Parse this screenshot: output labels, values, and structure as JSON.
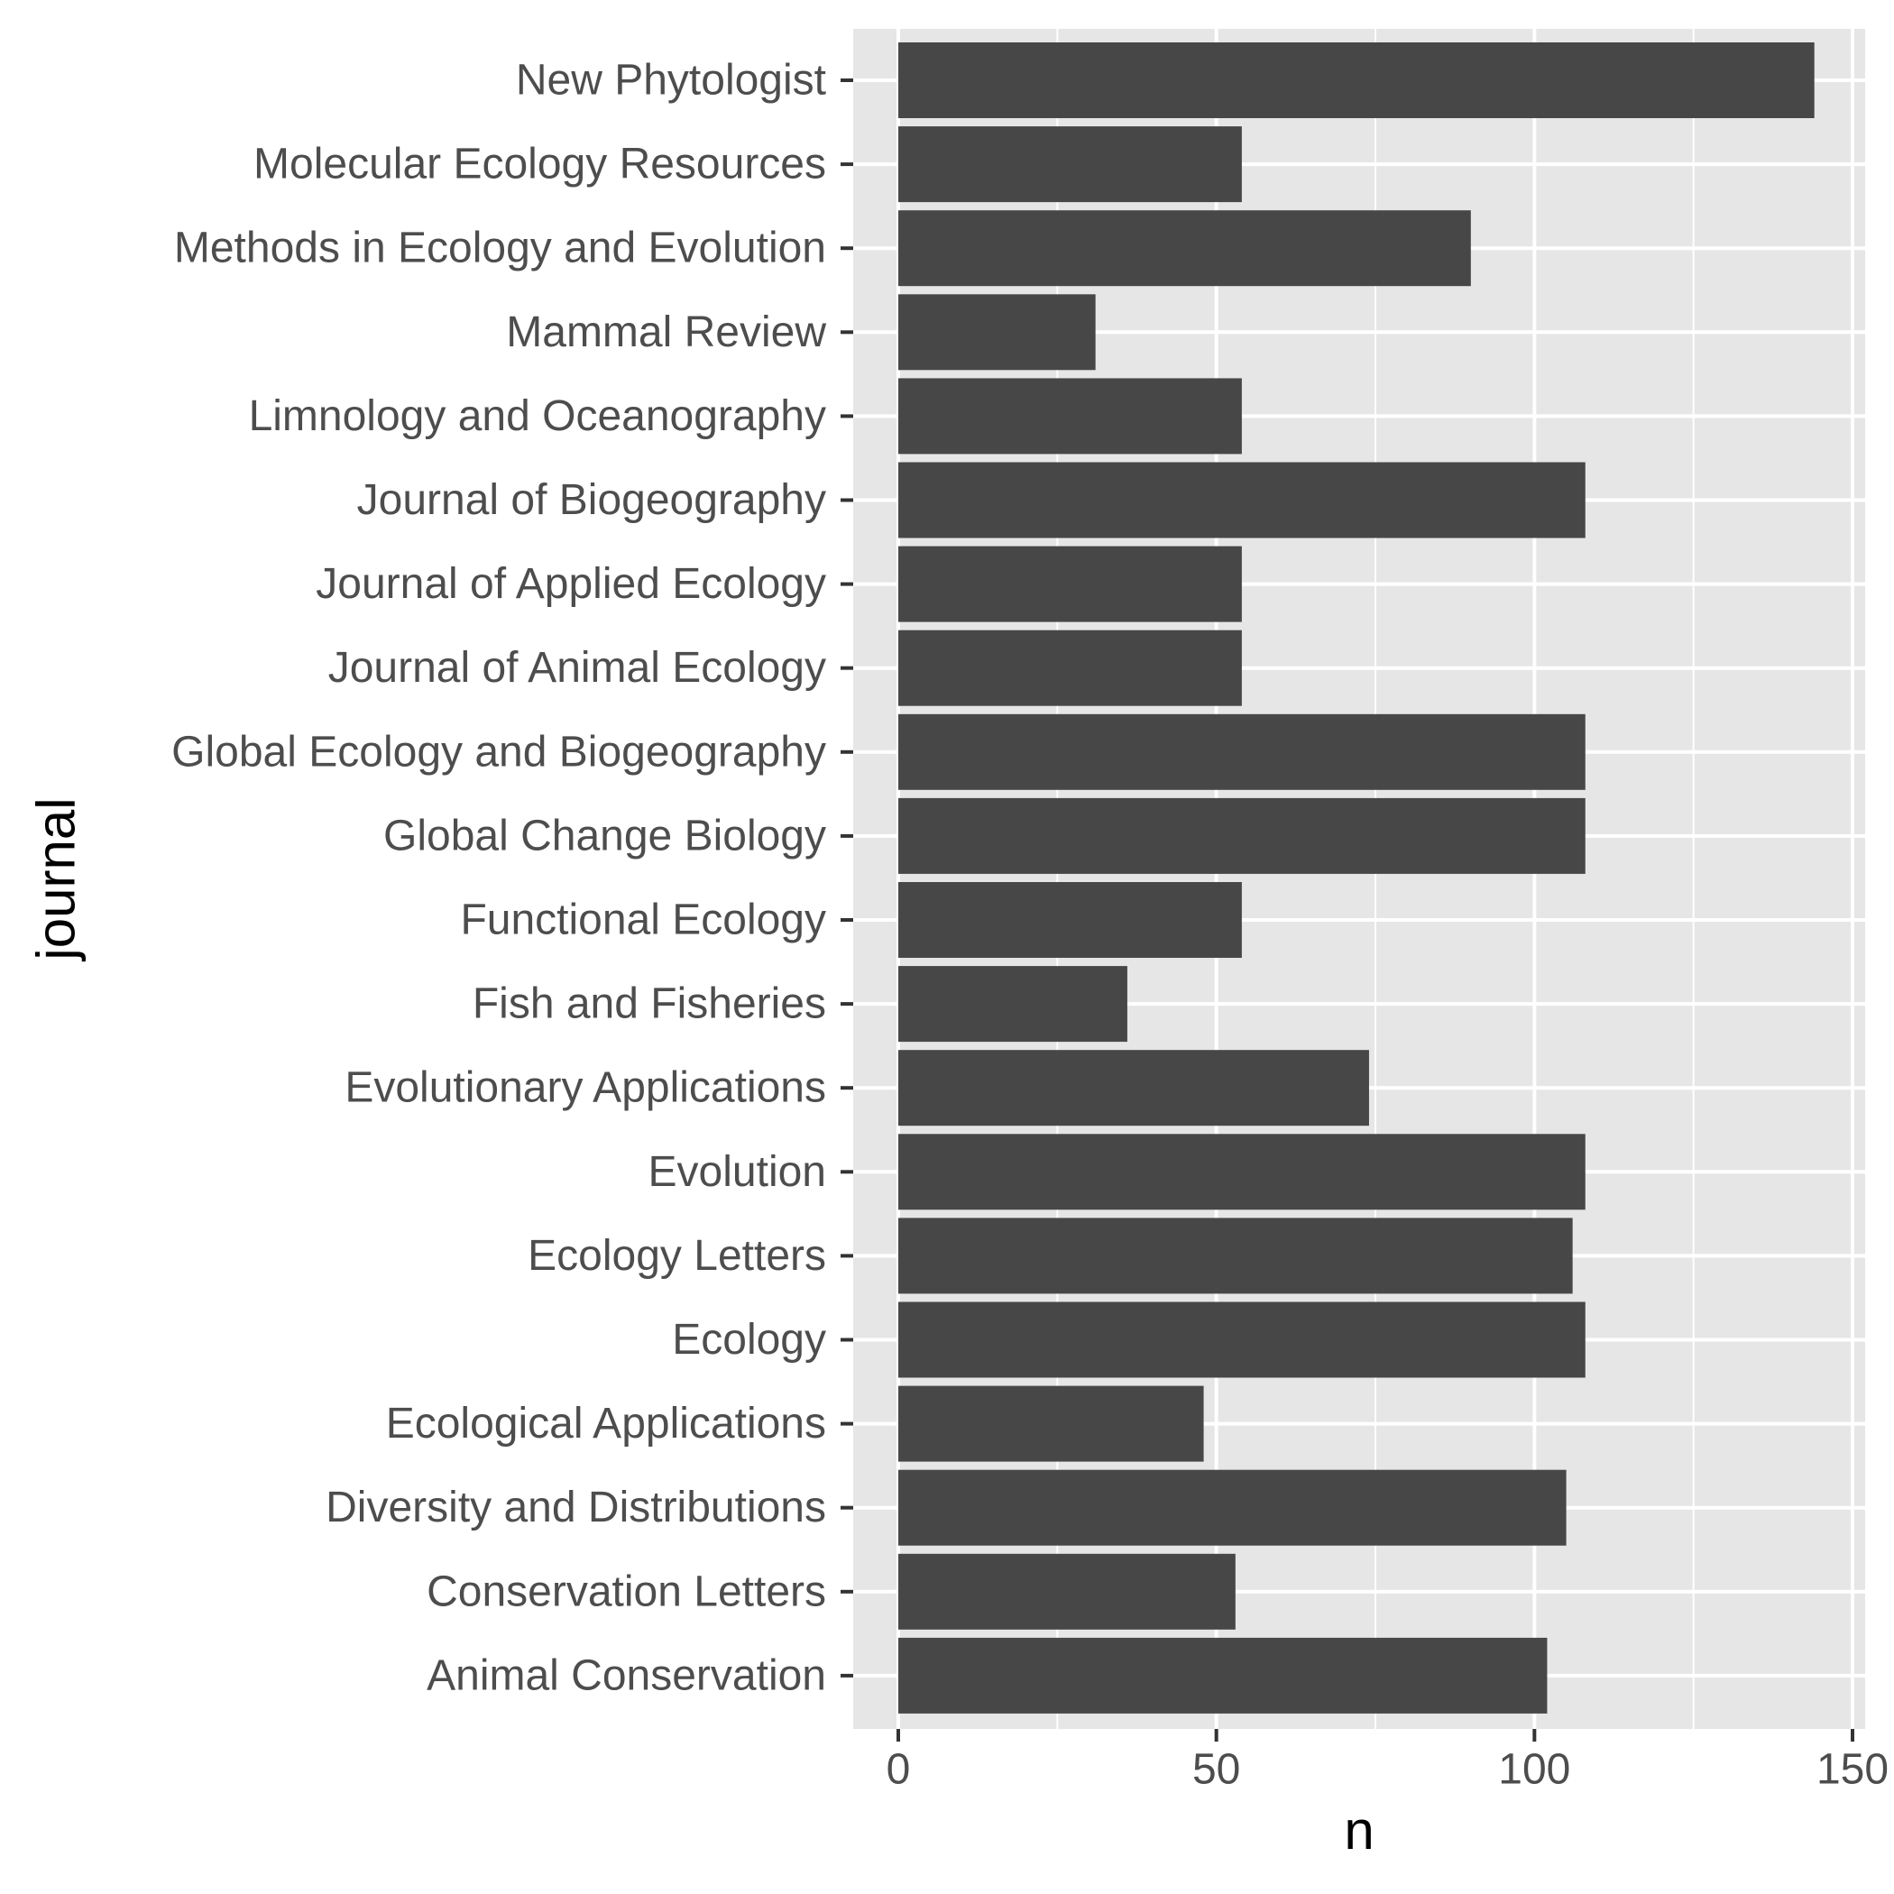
{
  "chart_data": {
    "type": "bar",
    "orientation": "horizontal",
    "title": "",
    "xlabel": "n",
    "ylabel": "journal",
    "xlim": [
      0,
      150
    ],
    "x_ticks": [
      0,
      50,
      100,
      150
    ],
    "grid": true,
    "legend": "none",
    "categories": [
      "Animal Conservation",
      "Conservation Letters",
      "Diversity and Distributions",
      "Ecological Applications",
      "Ecology",
      "Ecology Letters",
      "Evolution",
      "Evolutionary Applications",
      "Fish and Fisheries",
      "Functional Ecology",
      "Global Change Biology",
      "Global Ecology and Biogeography",
      "Journal of Animal Ecology",
      "Journal of Applied Ecology",
      "Journal of Biogeography",
      "Limnology and Oceanography",
      "Mammal Review",
      "Methods in Ecology and Evolution",
      "Molecular Ecology Resources",
      "New Phytologist"
    ],
    "values": [
      102,
      53,
      105,
      48,
      108,
      106,
      108,
      74,
      36,
      54,
      108,
      108,
      54,
      54,
      108,
      54,
      31,
      90,
      54,
      144
    ]
  },
  "colors": {
    "bar": "#474747",
    "panel": "#e6e6e6",
    "grid": "#ffffff",
    "tick_text": "#4d4d4d",
    "tick_mark": "#333333"
  }
}
